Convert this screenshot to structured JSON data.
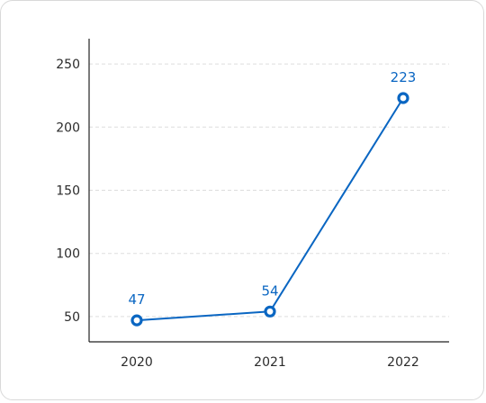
{
  "chart_data": {
    "type": "line",
    "title": "",
    "xlabel": "",
    "ylabel": "",
    "categories": [
      "2020",
      "2021",
      "2022"
    ],
    "series": [
      {
        "values": [
          47,
          54,
          223
        ]
      }
    ],
    "data_labels": [
      "47",
      "54",
      "223"
    ],
    "y_ticks": [
      "50",
      "100",
      "150",
      "200",
      "250"
    ],
    "ylim": [
      30,
      270
    ],
    "grid": "horizontal dashed",
    "legend": "none",
    "colors": {
      "line": "#0a66c2",
      "grid": "#dddddd",
      "axis": "#222222"
    }
  }
}
